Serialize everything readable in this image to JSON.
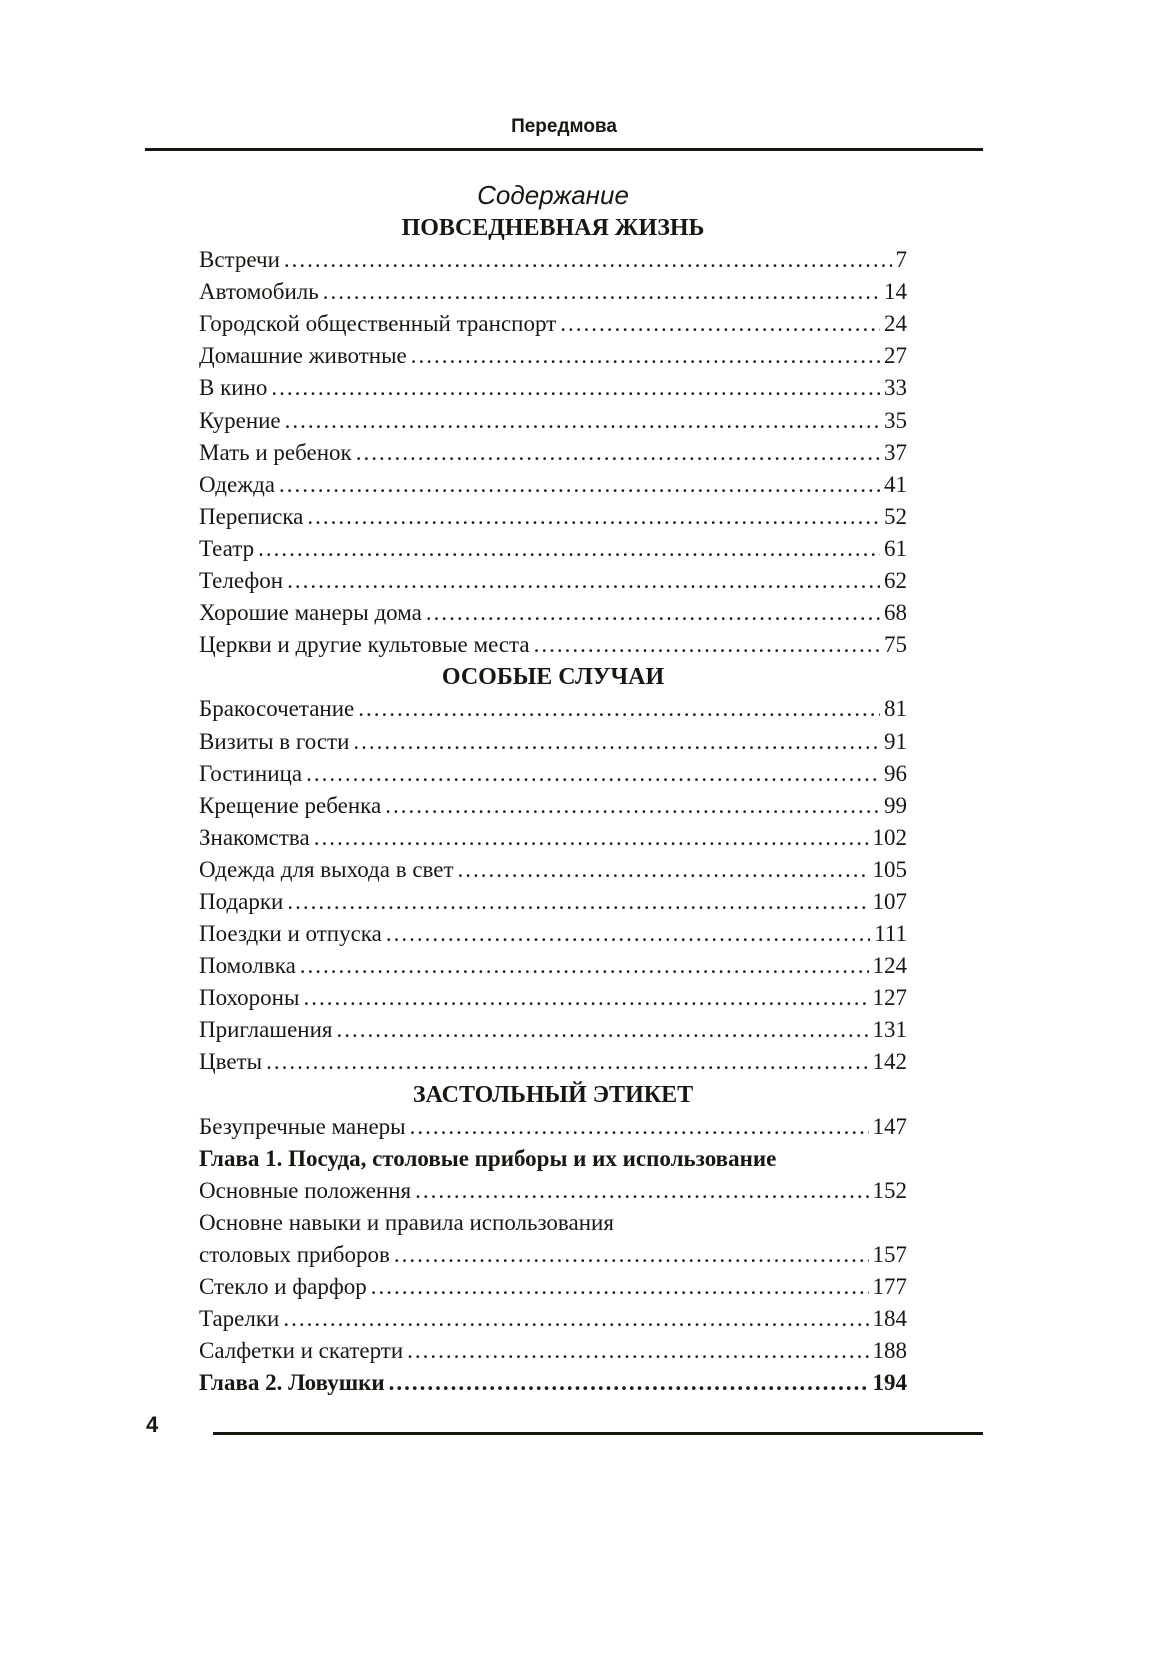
{
  "running_head": "Передмова",
  "toc_title": "Содержание",
  "page_number": "4",
  "rows": [
    {
      "type": "section",
      "text": "ПОВСЕДНЕВНАЯ ЖИЗНЬ"
    },
    {
      "type": "entry",
      "text": "Встречи",
      "page": "7"
    },
    {
      "type": "entry",
      "text": "Автомобиль",
      "page": "14"
    },
    {
      "type": "entry",
      "text": "Городской общественный транспорт",
      "page": "24"
    },
    {
      "type": "entry",
      "text": "Домашние животные",
      "page": "27"
    },
    {
      "type": "entry",
      "text": "В кино",
      "page": "33"
    },
    {
      "type": "entry",
      "text": "Курение",
      "page": "35"
    },
    {
      "type": "entry",
      "text": "Мать и ребенок",
      "page": "37"
    },
    {
      "type": "entry",
      "text": "Одежда",
      "page": "41"
    },
    {
      "type": "entry",
      "text": "Переписка",
      "page": "52"
    },
    {
      "type": "entry",
      "text": "Театр",
      "page": "61"
    },
    {
      "type": "entry",
      "text": "Телефон",
      "page": "62"
    },
    {
      "type": "entry",
      "text": "Хорошие манеры дома",
      "page": "68"
    },
    {
      "type": "entry",
      "text": "Церкви и другие культовые места",
      "page": "75"
    },
    {
      "type": "section",
      "text": "ОСОБЫЕ СЛУЧАИ"
    },
    {
      "type": "entry",
      "text": "Бракосочетание",
      "page": "81"
    },
    {
      "type": "entry",
      "text": "Визиты в гости",
      "page": "91"
    },
    {
      "type": "entry",
      "text": "Гостиница",
      "page": "96"
    },
    {
      "type": "entry",
      "text": "Крещение ребенка",
      "page": "99"
    },
    {
      "type": "entry",
      "text": "Знакомства",
      "page": "102"
    },
    {
      "type": "entry",
      "text": "Одежда для выхода в свет",
      "page": "105"
    },
    {
      "type": "entry",
      "text": "Подарки",
      "page": "107"
    },
    {
      "type": "entry",
      "text": "Поездки и отпуска",
      "page": "111"
    },
    {
      "type": "entry",
      "text": "Помолвка",
      "page": "124"
    },
    {
      "type": "entry",
      "text": "Похороны",
      "page": "127"
    },
    {
      "type": "entry",
      "text": "Приглашения",
      "page": "131"
    },
    {
      "type": "entry",
      "text": "Цветы",
      "page": "142"
    },
    {
      "type": "section",
      "text": "ЗАСТОЛЬНЫЙ ЭТИКЕТ"
    },
    {
      "type": "entry",
      "text": "Безупречные манеры",
      "page": "147"
    },
    {
      "type": "chapter",
      "text": "Глава 1. Посуда, столовые приборы и их использование"
    },
    {
      "type": "entry",
      "text": "Основные положення",
      "page": "152"
    },
    {
      "type": "line",
      "text": "Основне навыки и правила использования"
    },
    {
      "type": "entry",
      "text": "столовых приборов",
      "page": "157"
    },
    {
      "type": "entry",
      "text": "Стекло и фарфор",
      "page": "177"
    },
    {
      "type": "entry",
      "text": "Тарелки",
      "page": "184"
    },
    {
      "type": "entry",
      "text": "Салфетки и скатерти",
      "page": "188"
    },
    {
      "type": "entry",
      "bold": true,
      "text": "Глава 2. Ловушки",
      "page": "194"
    }
  ]
}
